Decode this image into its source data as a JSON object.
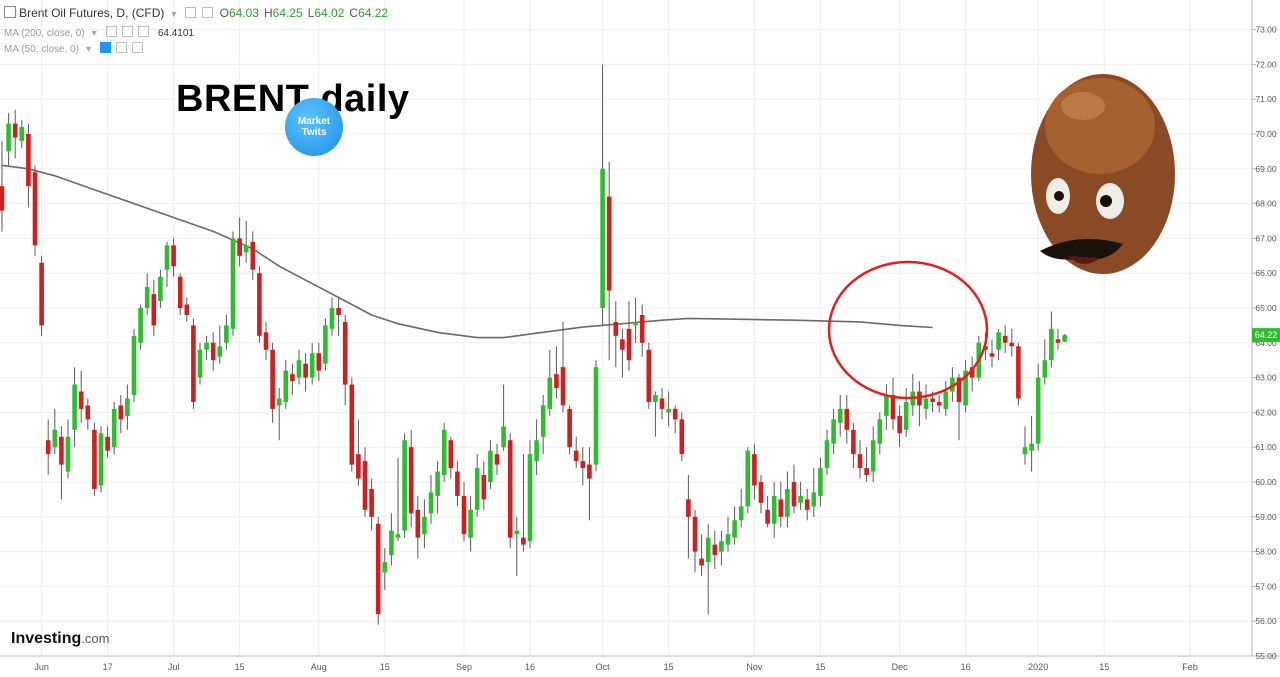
{
  "legend": {
    "symbol": "Brent Oil Futures, D, (CFD)",
    "ohlc": [
      {
        "k": "O",
        "v": "64.03"
      },
      {
        "k": "H",
        "v": "64.25"
      },
      {
        "k": "L",
        "v": "64.02"
      },
      {
        "k": "C",
        "v": "64.22"
      }
    ],
    "ma200_label": "MA (200, close, 0)",
    "ma200_value": "64.4101",
    "ma50_label": "MA (50, close, 0)"
  },
  "overlay_title": "BRENT daily",
  "logo_text": "Market Twits",
  "watermark": "Investing",
  "watermark_suffix": ".com",
  "colors": {
    "up": "#2ebd2e",
    "down": "#d11f1f",
    "ma": "#6a6a6a",
    "circle": "#e02020",
    "price_badge": "#2ebd2e"
  },
  "chart_data": {
    "type": "candlestick",
    "ylim": [
      55.0,
      73.5
    ],
    "yticks": [
      "55.00",
      "56.00",
      "57.00",
      "58.00",
      "59.00",
      "60.00",
      "61.00",
      "62.00",
      "63.00",
      "64.00",
      "65.00",
      "66.00",
      "67.00",
      "68.00",
      "69.00",
      "70.00",
      "71.00",
      "72.00",
      "73.00"
    ],
    "last_price": "64.22",
    "xticks": [
      {
        "label": "Jun",
        "i": 6
      },
      {
        "label": "17",
        "i": 16
      },
      {
        "label": "Jul",
        "i": 26
      },
      {
        "label": "15",
        "i": 36
      },
      {
        "label": "Aug",
        "i": 48
      },
      {
        "label": "15",
        "i": 58
      },
      {
        "label": "Sep",
        "i": 70
      },
      {
        "label": "16",
        "i": 80
      },
      {
        "label": "Oct",
        "i": 91
      },
      {
        "label": "15",
        "i": 101
      },
      {
        "label": "Nov",
        "i": 114
      },
      {
        "label": "15",
        "i": 124
      },
      {
        "label": "Dec",
        "i": 136
      },
      {
        "label": "16",
        "i": 146
      },
      {
        "label": "2020",
        "i": 157
      },
      {
        "label": "15",
        "i": 167
      },
      {
        "label": "Feb",
        "i": 180
      }
    ],
    "candles": [
      [
        68.5,
        67.8,
        69.8,
        67.2
      ],
      [
        69.5,
        70.3,
        70.6,
        69.1
      ],
      [
        70.3,
        69.9,
        70.7,
        69.3
      ],
      [
        69.8,
        70.2,
        70.4,
        69.6
      ],
      [
        70.0,
        68.5,
        70.3,
        67.9
      ],
      [
        68.9,
        66.8,
        69.1,
        66.5
      ],
      [
        66.3,
        64.5,
        66.5,
        64.2
      ],
      [
        61.2,
        60.8,
        61.8,
        60.2
      ],
      [
        61.0,
        61.5,
        62.1,
        60.8
      ],
      [
        61.3,
        60.5,
        61.6,
        59.5
      ],
      [
        60.3,
        61.3,
        61.8,
        60.1
      ],
      [
        61.5,
        62.8,
        63.3,
        61.0
      ],
      [
        62.6,
        62.1,
        63.2,
        61.7
      ],
      [
        62.2,
        61.8,
        62.4,
        61.5
      ],
      [
        61.5,
        59.8,
        61.7,
        59.6
      ],
      [
        59.9,
        61.4,
        61.6,
        59.7
      ],
      [
        61.3,
        60.9,
        61.6,
        60.7
      ],
      [
        61.0,
        62.1,
        62.3,
        60.8
      ],
      [
        62.2,
        61.8,
        62.5,
        61.4
      ],
      [
        61.9,
        62.4,
        62.8,
        61.5
      ],
      [
        62.5,
        64.2,
        64.4,
        62.3
      ],
      [
        64.0,
        65.0,
        65.1,
        63.8
      ],
      [
        65.0,
        65.6,
        66.0,
        64.8
      ],
      [
        65.4,
        64.5,
        65.8,
        64.2
      ],
      [
        65.2,
        65.9,
        66.1,
        65.0
      ],
      [
        66.1,
        66.8,
        66.9,
        65.6
      ],
      [
        66.8,
        66.2,
        67.0,
        65.9
      ],
      [
        65.9,
        65.0,
        66.0,
        64.8
      ],
      [
        65.1,
        64.8,
        65.3,
        64.6
      ],
      [
        64.5,
        62.3,
        64.7,
        62.1
      ],
      [
        63.0,
        63.8,
        64.0,
        62.8
      ],
      [
        63.8,
        64.0,
        64.2,
        63.5
      ],
      [
        64.0,
        63.5,
        64.3,
        63.2
      ],
      [
        63.6,
        63.9,
        64.5,
        63.4
      ],
      [
        64.0,
        64.5,
        64.8,
        63.8
      ],
      [
        64.4,
        67.0,
        67.2,
        64.2
      ],
      [
        67.0,
        66.5,
        67.6,
        66.2
      ],
      [
        66.6,
        66.8,
        67.5,
        66.3
      ],
      [
        66.9,
        66.1,
        67.2,
        65.8
      ],
      [
        66.0,
        64.2,
        66.2,
        64.0
      ],
      [
        64.3,
        63.8,
        64.6,
        63.5
      ],
      [
        63.8,
        62.1,
        64.0,
        61.7
      ],
      [
        62.2,
        62.4,
        62.7,
        61.2
      ],
      [
        62.3,
        63.2,
        63.5,
        62.1
      ],
      [
        63.1,
        62.9,
        63.4,
        62.5
      ],
      [
        63.0,
        63.5,
        63.8,
        62.8
      ],
      [
        63.4,
        63.0,
        63.7,
        62.6
      ],
      [
        63.0,
        63.7,
        64.0,
        62.8
      ],
      [
        63.7,
        63.2,
        64.0,
        62.9
      ],
      [
        63.4,
        64.5,
        64.7,
        63.2
      ],
      [
        64.4,
        65.0,
        65.3,
        64.2
      ],
      [
        65.0,
        64.8,
        65.3,
        64.2
      ],
      [
        64.6,
        62.8,
        64.8,
        62.2
      ],
      [
        62.8,
        60.5,
        63.0,
        60.3
      ],
      [
        60.8,
        60.1,
        61.8,
        59.9
      ],
      [
        60.6,
        59.2,
        61.0,
        59.0
      ],
      [
        59.8,
        59.0,
        60.1,
        58.6
      ],
      [
        58.8,
        56.2,
        59.0,
        55.9
      ],
      [
        57.4,
        57.7,
        58.1,
        56.9
      ],
      [
        57.9,
        58.6,
        59.1,
        57.6
      ],
      [
        58.4,
        58.5,
        60.7,
        58.3
      ],
      [
        58.6,
        61.2,
        61.4,
        58.4
      ],
      [
        61.0,
        59.1,
        61.5,
        58.7
      ],
      [
        59.2,
        58.4,
        59.6,
        57.8
      ],
      [
        58.5,
        59.0,
        59.5,
        58.1
      ],
      [
        59.1,
        59.7,
        60.2,
        58.8
      ],
      [
        59.6,
        60.3,
        60.6,
        59.1
      ],
      [
        60.2,
        61.5,
        61.7,
        60.0
      ],
      [
        61.2,
        60.4,
        61.3,
        60.1
      ],
      [
        60.3,
        59.6,
        60.6,
        59.3
      ],
      [
        59.6,
        58.5,
        60.0,
        58.3
      ],
      [
        58.4,
        59.2,
        59.6,
        58.0
      ],
      [
        59.2,
        60.4,
        60.8,
        59.0
      ],
      [
        60.2,
        59.5,
        60.6,
        59.2
      ],
      [
        60.0,
        60.9,
        61.2,
        59.8
      ],
      [
        60.8,
        60.5,
        61.1,
        60.2
      ],
      [
        61.0,
        61.6,
        62.8,
        60.9
      ],
      [
        61.2,
        58.4,
        61.4,
        58.1
      ],
      [
        58.5,
        58.6,
        59.0,
        57.3
      ],
      [
        58.4,
        58.2,
        60.8,
        58.0
      ],
      [
        58.3,
        60.8,
        61.2,
        58.1
      ],
      [
        60.6,
        61.2,
        61.8,
        60.2
      ],
      [
        61.3,
        62.2,
        62.5,
        60.8
      ],
      [
        62.1,
        63.0,
        63.8,
        61.9
      ],
      [
        63.1,
        62.7,
        63.9,
        62.4
      ],
      [
        63.3,
        62.2,
        64.6,
        62.0
      ],
      [
        62.1,
        61.0,
        62.2,
        60.8
      ],
      [
        60.9,
        60.6,
        61.3,
        60.4
      ],
      [
        60.6,
        60.4,
        61.0,
        59.9
      ],
      [
        60.5,
        60.1,
        61.0,
        58.9
      ],
      [
        60.5,
        63.3,
        63.5,
        60.3
      ],
      [
        65.0,
        69.0,
        72.0,
        64.5
      ],
      [
        68.2,
        65.5,
        69.2,
        63.5
      ],
      [
        64.6,
        64.2,
        65.2,
        63.3
      ],
      [
        64.1,
        63.8,
        64.4,
        63.0
      ],
      [
        64.4,
        63.5,
        65.2,
        63.2
      ],
      [
        64.5,
        64.6,
        65.3,
        64.0
      ],
      [
        64.8,
        64.0,
        65.1,
        63.6
      ],
      [
        63.8,
        62.3,
        64.0,
        62.1
      ],
      [
        62.3,
        62.5,
        62.6,
        61.3
      ],
      [
        62.4,
        62.1,
        62.7,
        61.8
      ],
      [
        62.0,
        62.1,
        62.6,
        61.6
      ],
      [
        62.1,
        61.8,
        62.2,
        61.4
      ],
      [
        61.8,
        60.8,
        62.0,
        60.6
      ],
      [
        59.5,
        59.0,
        60.2,
        57.8
      ],
      [
        59.0,
        58.0,
        59.2,
        57.4
      ],
      [
        57.8,
        57.6,
        58.5,
        57.3
      ],
      [
        57.7,
        58.4,
        58.8,
        56.2
      ],
      [
        58.2,
        57.9,
        58.6,
        57.5
      ],
      [
        58.0,
        58.3,
        58.6,
        57.6
      ],
      [
        58.2,
        58.5,
        59.0,
        58.0
      ],
      [
        58.4,
        58.9,
        59.3,
        58.2
      ],
      [
        58.9,
        59.3,
        59.8,
        58.7
      ],
      [
        59.3,
        60.9,
        61.0,
        59.1
      ],
      [
        60.8,
        59.9,
        61.1,
        59.5
      ],
      [
        60.0,
        59.4,
        60.2,
        59.1
      ],
      [
        59.2,
        58.8,
        59.6,
        58.7
      ],
      [
        58.8,
        59.6,
        60.0,
        58.4
      ],
      [
        59.5,
        59.0,
        60.0,
        58.7
      ],
      [
        59.0,
        59.8,
        60.3,
        58.7
      ],
      [
        60.0,
        59.3,
        60.5,
        59.1
      ],
      [
        59.4,
        59.6,
        60.0,
        59.2
      ],
      [
        59.5,
        59.2,
        59.8,
        58.9
      ],
      [
        59.3,
        59.7,
        60.4,
        59.0
      ],
      [
        59.6,
        60.4,
        60.7,
        59.3
      ],
      [
        60.4,
        61.2,
        61.5,
        60.2
      ],
      [
        61.1,
        61.8,
        62.1,
        60.8
      ],
      [
        61.7,
        62.1,
        62.5,
        61.3
      ],
      [
        62.1,
        61.5,
        62.5,
        61.1
      ],
      [
        61.5,
        60.8,
        61.7,
        60.4
      ],
      [
        60.8,
        60.4,
        61.2,
        60.1
      ],
      [
        60.4,
        60.2,
        61.0,
        60.0
      ],
      [
        60.3,
        61.2,
        61.6,
        60.0
      ],
      [
        61.1,
        61.8,
        62.0,
        60.8
      ],
      [
        61.9,
        62.5,
        62.8,
        61.5
      ],
      [
        62.5,
        61.8,
        63.0,
        61.5
      ],
      [
        61.9,
        61.4,
        62.2,
        61.0
      ],
      [
        61.5,
        62.3,
        62.7,
        61.3
      ],
      [
        62.2,
        62.6,
        63.1,
        61.9
      ],
      [
        62.6,
        62.2,
        62.9,
        61.6
      ],
      [
        62.1,
        62.4,
        62.8,
        61.8
      ],
      [
        62.4,
        62.3,
        62.6,
        62.0
      ],
      [
        62.3,
        62.2,
        62.5,
        62.0
      ],
      [
        62.1,
        62.6,
        62.9,
        61.9
      ],
      [
        62.6,
        63.0,
        63.3,
        62.3
      ],
      [
        63.0,
        62.3,
        63.1,
        61.2
      ],
      [
        62.2,
        63.2,
        63.5,
        62.0
      ],
      [
        63.3,
        63.0,
        63.6,
        62.6
      ],
      [
        63.0,
        64.0,
        64.2,
        62.9
      ],
      [
        63.9,
        63.8,
        64.3,
        63.5
      ],
      [
        63.7,
        63.6,
        64.1,
        63.3
      ],
      [
        63.8,
        64.3,
        64.4,
        63.5
      ],
      [
        64.2,
        64.0,
        64.5,
        63.7
      ],
      [
        64.0,
        63.9,
        64.4,
        63.6
      ],
      [
        63.9,
        62.4,
        64.0,
        62.2
      ],
      [
        60.8,
        61.0,
        61.6,
        60.5
      ],
      [
        60.9,
        61.1,
        61.9,
        60.3
      ],
      [
        61.1,
        63.0,
        63.4,
        60.9
      ],
      [
        63.0,
        63.5,
        64.1,
        62.8
      ],
      [
        63.5,
        64.4,
        64.9,
        63.3
      ],
      [
        64.1,
        64.0,
        64.4,
        63.8
      ],
      [
        64.03,
        64.22,
        64.25,
        64.02
      ]
    ],
    "ma200": [
      [
        0,
        69.1
      ],
      [
        4,
        69.0
      ],
      [
        8,
        68.8
      ],
      [
        14,
        68.4
      ],
      [
        20,
        68.0
      ],
      [
        26,
        67.6
      ],
      [
        32,
        67.2
      ],
      [
        38,
        66.7
      ],
      [
        42,
        66.2
      ],
      [
        48,
        65.6
      ],
      [
        52,
        65.2
      ],
      [
        56,
        64.8
      ],
      [
        60,
        64.55
      ],
      [
        66,
        64.3
      ],
      [
        72,
        64.15
      ],
      [
        76,
        64.15
      ],
      [
        80,
        64.25
      ],
      [
        84,
        64.35
      ],
      [
        88,
        64.45
      ],
      [
        94,
        64.55
      ],
      [
        100,
        64.65
      ],
      [
        104,
        64.7
      ],
      [
        110,
        64.68
      ],
      [
        120,
        64.65
      ],
      [
        130,
        64.6
      ],
      [
        136,
        64.5
      ],
      [
        141,
        64.44
      ]
    ]
  }
}
